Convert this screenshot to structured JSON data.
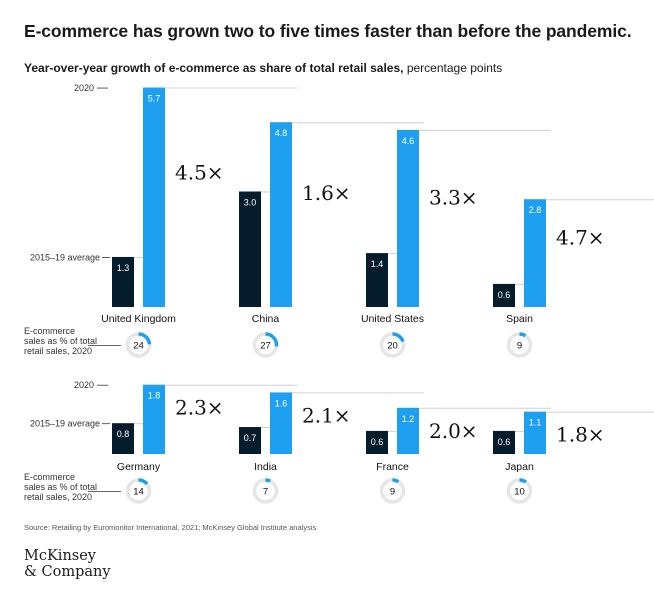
{
  "title": "E-commerce has grown two to five times faster than before the pandemic.",
  "subtitle_bold": "Year-over-year growth of e-commerce as share of total retail sales,",
  "subtitle_rest": " percentage points",
  "source": "Source: Retailing by Euromonitor International, 2021; McKinsey Global Institute analysis",
  "logo_line1": "McKinsey",
  "logo_line2": "& Company",
  "colors": {
    "pre": "#051c2c",
    "post": "#1f9ff0",
    "ring_track": "#e6e6e6",
    "ring_fill": "#1f9ff0"
  },
  "chart_data": {
    "type": "bar",
    "series": [
      {
        "name": "2015–19 average",
        "label": "2015–19 average"
      },
      {
        "name": "2020",
        "label": "2020"
      }
    ],
    "ring_label": "E-commerce sales as % of total retail sales, 2020",
    "ring_label_lines": [
      "E-commerce",
      "sales as % of total",
      "retail sales, 2020"
    ],
    "countries": [
      {
        "name": "United Kingdom",
        "avg": 1.3,
        "y2020": 5.7,
        "ratio": "4.5×",
        "share": 24
      },
      {
        "name": "China",
        "avg": 3.0,
        "y2020": 4.8,
        "ratio": "1.6×",
        "share": 27
      },
      {
        "name": "United States",
        "avg": 1.4,
        "y2020": 4.6,
        "ratio": "3.3×",
        "share": 20
      },
      {
        "name": "Spain",
        "avg": 0.6,
        "y2020": 2.8,
        "ratio": "4.7×",
        "share": 9
      },
      {
        "name": "Germany",
        "avg": 0.8,
        "y2020": 1.8,
        "ratio": "2.3×",
        "share": 14
      },
      {
        "name": "India",
        "avg": 0.7,
        "y2020": 1.6,
        "ratio": "2.1×",
        "share": 7
      },
      {
        "name": "France",
        "avg": 0.6,
        "y2020": 1.2,
        "ratio": "2.0×",
        "share": 9
      },
      {
        "name": "Japan",
        "avg": 0.6,
        "y2020": 1.1,
        "ratio": "1.8×",
        "share": 10
      }
    ]
  }
}
